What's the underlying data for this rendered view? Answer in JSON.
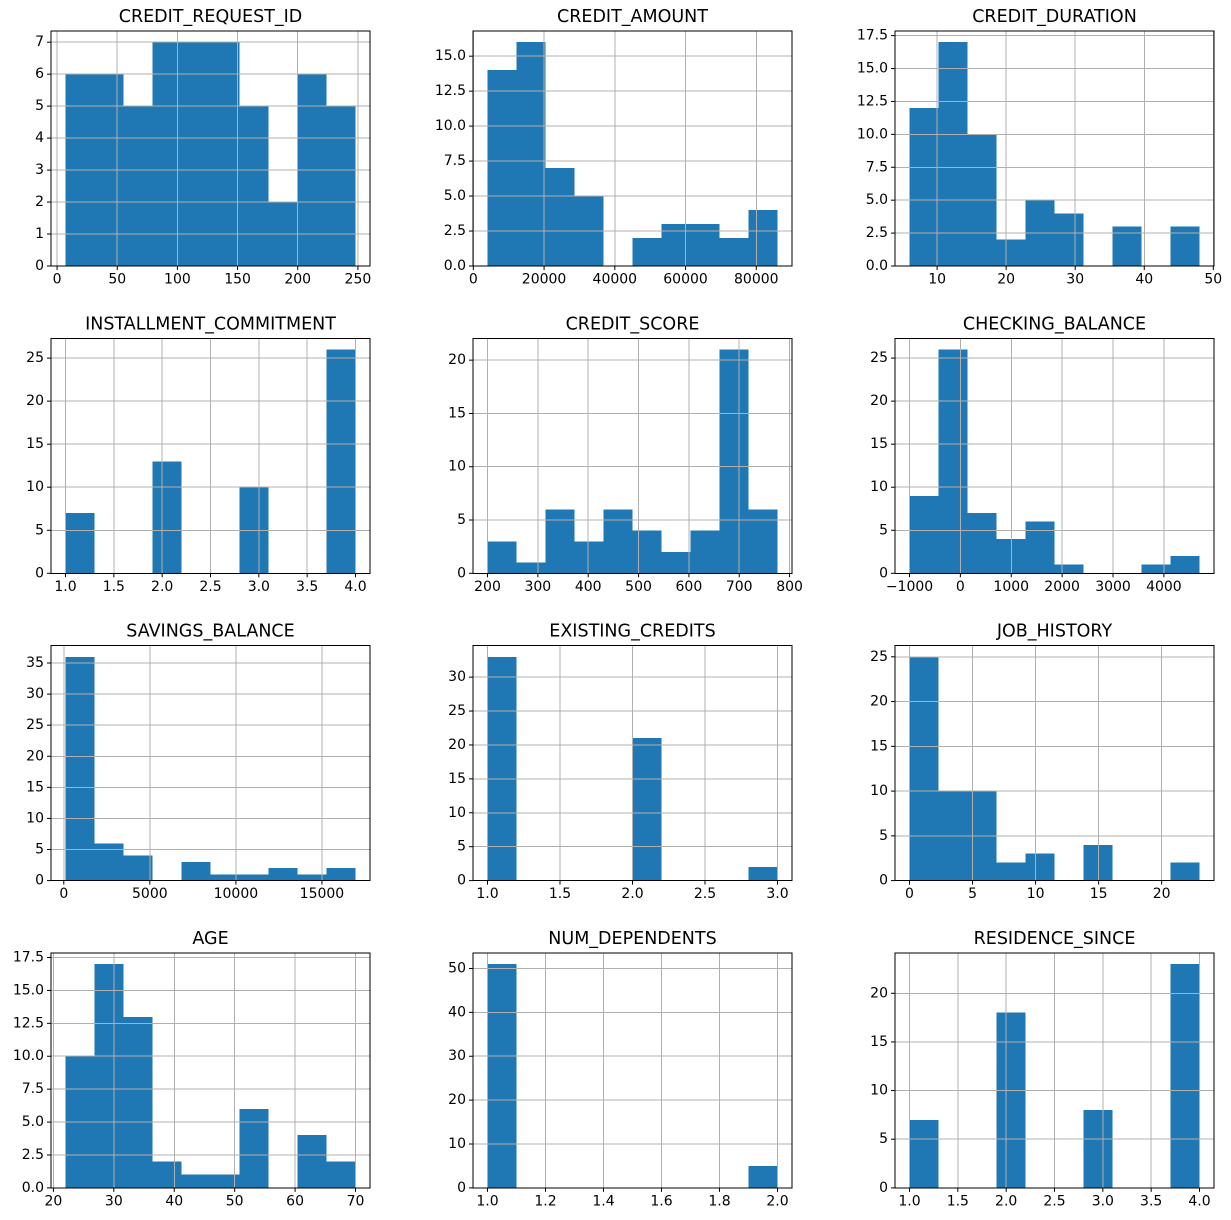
{
  "figure": {
    "background": "#ffffff",
    "bar_color": "#1f77b4",
    "grid_color": "#b0b0b0",
    "spine_color": "#000000",
    "text_color": "#000000",
    "rows": 4,
    "cols": 3,
    "total_samples_per_histogram": 56
  },
  "chart_data": [
    {
      "type": "bar",
      "subtype": "histogram",
      "title": "CREDIT_REQUEST_ID",
      "bin_start": 7,
      "bin_end": 248,
      "values": [
        6,
        6,
        5,
        7,
        7,
        7,
        5,
        2,
        6,
        5
      ],
      "xlim": [
        -5.05,
        260.05
      ],
      "ylim": [
        0,
        7.35
      ],
      "grid": true,
      "xticks": {
        "values": [
          0,
          50,
          100,
          150,
          200,
          250
        ],
        "labels": [
          "0",
          "50",
          "100",
          "150",
          "200",
          "250"
        ]
      },
      "yticks": {
        "values": [
          0,
          1,
          2,
          3,
          4,
          5,
          6,
          7
        ],
        "labels": [
          "0",
          "1",
          "2",
          "3",
          "4",
          "5",
          "6",
          "7"
        ]
      }
    },
    {
      "type": "bar",
      "subtype": "histogram",
      "title": "CREDIT_AMOUNT",
      "bin_start": 4000,
      "bin_end": 86000,
      "values": [
        14,
        16,
        7,
        5,
        0,
        2,
        3,
        3,
        2,
        4
      ],
      "xlim": [
        -100,
        90100
      ],
      "ylim": [
        0,
        16.8
      ],
      "grid": true,
      "xticks": {
        "values": [
          0,
          20000,
          40000,
          60000,
          80000
        ],
        "labels": [
          "0",
          "20000",
          "40000",
          "60000",
          "80000"
        ]
      },
      "yticks": {
        "values": [
          0,
          2.5,
          5,
          7.5,
          10,
          12.5,
          15
        ],
        "labels": [
          "0.0",
          "2.5",
          "5.0",
          "7.5",
          "10.0",
          "12.5",
          "15.0"
        ]
      }
    },
    {
      "type": "bar",
      "subtype": "histogram",
      "title": "CREDIT_DURATION",
      "bin_start": 6,
      "bin_end": 48,
      "values": [
        12,
        17,
        10,
        2,
        5,
        4,
        0,
        3,
        0,
        3
      ],
      "xlim": [
        3.9,
        50.1
      ],
      "ylim": [
        0,
        17.85
      ],
      "grid": true,
      "xticks": {
        "values": [
          10,
          20,
          30,
          40,
          50
        ],
        "labels": [
          "10",
          "20",
          "30",
          "40",
          "50"
        ]
      },
      "yticks": {
        "values": [
          0,
          2.5,
          5,
          7.5,
          10,
          12.5,
          15,
          17.5
        ],
        "labels": [
          "0.0",
          "2.5",
          "5.0",
          "7.5",
          "10.0",
          "12.5",
          "15.0",
          "17.5"
        ]
      }
    },
    {
      "type": "bar",
      "subtype": "histogram",
      "title": "INSTALLMENT_COMMITMENT",
      "bin_start": 1,
      "bin_end": 4,
      "values": [
        7,
        0,
        0,
        13,
        0,
        0,
        10,
        0,
        0,
        26
      ],
      "xlim": [
        0.85,
        4.15
      ],
      "ylim": [
        0,
        27.3
      ],
      "grid": true,
      "xticks": {
        "values": [
          1,
          1.5,
          2,
          2.5,
          3,
          3.5,
          4
        ],
        "labels": [
          "1.0",
          "1.5",
          "2.0",
          "2.5",
          "3.0",
          "3.5",
          "4.0"
        ]
      },
      "yticks": {
        "values": [
          0,
          5,
          10,
          15,
          20,
          25
        ],
        "labels": [
          "0",
          "5",
          "10",
          "15",
          "20",
          "25"
        ]
      }
    },
    {
      "type": "bar",
      "subtype": "histogram",
      "title": "CREDIT_SCORE",
      "bin_start": 200,
      "bin_end": 776,
      "values": [
        3,
        1,
        6,
        3,
        6,
        4,
        2,
        4,
        21,
        6
      ],
      "xlim": [
        171.2,
        804.8
      ],
      "ylim": [
        0,
        22.05
      ],
      "grid": true,
      "xticks": {
        "values": [
          200,
          300,
          400,
          500,
          600,
          700,
          800
        ],
        "labels": [
          "200",
          "300",
          "400",
          "500",
          "600",
          "700",
          "800"
        ]
      },
      "yticks": {
        "values": [
          0,
          5,
          10,
          15,
          20
        ],
        "labels": [
          "0",
          "5",
          "10",
          "15",
          "20"
        ]
      }
    },
    {
      "type": "bar",
      "subtype": "histogram",
      "title": "CHECKING_BALANCE",
      "bin_start": -1000,
      "bin_end": 4700,
      "values": [
        9,
        26,
        7,
        4,
        6,
        1,
        0,
        0,
        1,
        2
      ],
      "xlim": [
        -1285,
        4985
      ],
      "ylim": [
        0,
        27.3
      ],
      "grid": true,
      "xticks": {
        "values": [
          -1000,
          0,
          1000,
          2000,
          3000,
          4000
        ],
        "labels": [
          "−1000",
          "0",
          "1000",
          "2000",
          "3000",
          "4000"
        ]
      },
      "yticks": {
        "values": [
          0,
          5,
          10,
          15,
          20,
          25
        ],
        "labels": [
          "0",
          "5",
          "10",
          "15",
          "20",
          "25"
        ]
      }
    },
    {
      "type": "bar",
      "subtype": "histogram",
      "title": "SAVINGS_BALANCE",
      "bin_start": 100,
      "bin_end": 16950,
      "values": [
        36,
        6,
        4,
        0,
        3,
        1,
        1,
        2,
        1,
        2
      ],
      "xlim": [
        -742.5,
        17792.5
      ],
      "ylim": [
        0,
        37.8
      ],
      "grid": true,
      "xticks": {
        "values": [
          0,
          5000,
          10000,
          15000
        ],
        "labels": [
          "0",
          "5000",
          "10000",
          "15000"
        ]
      },
      "yticks": {
        "values": [
          0,
          5,
          10,
          15,
          20,
          25,
          30,
          35
        ],
        "labels": [
          "0",
          "5",
          "10",
          "15",
          "20",
          "25",
          "30",
          "35"
        ]
      }
    },
    {
      "type": "bar",
      "subtype": "histogram",
      "title": "EXISTING_CREDITS",
      "bin_start": 1,
      "bin_end": 3,
      "values": [
        33,
        0,
        0,
        0,
        0,
        21,
        0,
        0,
        0,
        2
      ],
      "xlim": [
        0.9,
        3.1
      ],
      "ylim": [
        0,
        34.65
      ],
      "grid": true,
      "xticks": {
        "values": [
          1,
          1.5,
          2,
          2.5,
          3
        ],
        "labels": [
          "1.0",
          "1.5",
          "2.0",
          "2.5",
          "3.0"
        ]
      },
      "yticks": {
        "values": [
          0,
          5,
          10,
          15,
          20,
          25,
          30
        ],
        "labels": [
          "0",
          "5",
          "10",
          "15",
          "20",
          "25",
          "30"
        ]
      }
    },
    {
      "type": "bar",
      "subtype": "histogram",
      "title": "JOB_HISTORY",
      "bin_start": 0,
      "bin_end": 23,
      "values": [
        25,
        10,
        10,
        2,
        3,
        0,
        4,
        0,
        0,
        2
      ],
      "xlim": [
        -1.15,
        24.15
      ],
      "ylim": [
        0,
        26.25
      ],
      "grid": true,
      "xticks": {
        "values": [
          0,
          5,
          10,
          15,
          20
        ],
        "labels": [
          "0",
          "5",
          "10",
          "15",
          "20"
        ]
      },
      "yticks": {
        "values": [
          0,
          5,
          10,
          15,
          20,
          25
        ],
        "labels": [
          "0",
          "5",
          "10",
          "15",
          "20",
          "25"
        ]
      }
    },
    {
      "type": "bar",
      "subtype": "histogram",
      "title": "AGE",
      "bin_start": 22,
      "bin_end": 70,
      "values": [
        10,
        17,
        13,
        2,
        1,
        1,
        6,
        0,
        4,
        2
      ],
      "xlim": [
        19.6,
        72.4
      ],
      "ylim": [
        0,
        17.85
      ],
      "grid": true,
      "xticks": {
        "values": [
          20,
          30,
          40,
          50,
          60,
          70
        ],
        "labels": [
          "20",
          "30",
          "40",
          "50",
          "60",
          "70"
        ]
      },
      "yticks": {
        "values": [
          0,
          2.5,
          5,
          7.5,
          10,
          12.5,
          15,
          17.5
        ],
        "labels": [
          "0.0",
          "2.5",
          "5.0",
          "7.5",
          "10.0",
          "12.5",
          "15.0",
          "17.5"
        ]
      }
    },
    {
      "type": "bar",
      "subtype": "histogram",
      "title": "NUM_DEPENDENTS",
      "bin_start": 1,
      "bin_end": 2,
      "values": [
        51,
        0,
        0,
        0,
        0,
        0,
        0,
        0,
        0,
        5
      ],
      "xlim": [
        0.95,
        2.05
      ],
      "ylim": [
        0,
        53.55
      ],
      "grid": true,
      "xticks": {
        "values": [
          1,
          1.2,
          1.4,
          1.6,
          1.8,
          2
        ],
        "labels": [
          "1.0",
          "1.2",
          "1.4",
          "1.6",
          "1.8",
          "2.0"
        ]
      },
      "yticks": {
        "values": [
          0,
          10,
          20,
          30,
          40,
          50
        ],
        "labels": [
          "0",
          "10",
          "20",
          "30",
          "40",
          "50"
        ]
      }
    },
    {
      "type": "bar",
      "subtype": "histogram",
      "title": "RESIDENCE_SINCE",
      "bin_start": 1,
      "bin_end": 4,
      "values": [
        7,
        0,
        0,
        18,
        0,
        0,
        8,
        0,
        0,
        23
      ],
      "xlim": [
        0.85,
        4.15
      ],
      "ylim": [
        0,
        24.15
      ],
      "grid": true,
      "xticks": {
        "values": [
          1,
          1.5,
          2,
          2.5,
          3,
          3.5,
          4
        ],
        "labels": [
          "1.0",
          "1.5",
          "2.0",
          "2.5",
          "3.0",
          "3.5",
          "4.0"
        ]
      },
      "yticks": {
        "values": [
          0,
          5,
          10,
          15,
          20
        ],
        "labels": [
          "0",
          "5",
          "10",
          "15",
          "20"
        ]
      }
    }
  ]
}
